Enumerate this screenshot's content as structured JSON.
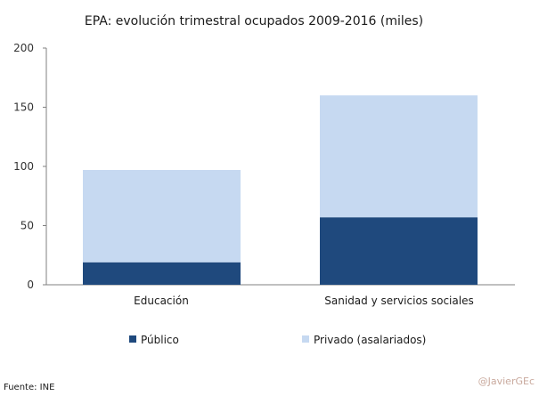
{
  "chart_data": {
    "type": "bar",
    "stacked": true,
    "title": "EPA: evolución trimestral ocupados 2009-2016 (miles)",
    "categories": [
      "Educación",
      "Sanidad y servicios sociales"
    ],
    "series": [
      {
        "name": "Público",
        "values": [
          19,
          57
        ],
        "color": "#1f497d"
      },
      {
        "name": "Privado (asalariados)",
        "values": [
          78,
          103
        ],
        "color": "#c6d9f1"
      }
    ],
    "ylim": [
      0,
      200
    ],
    "yticks": [
      "0",
      "50",
      "100",
      "150",
      "200"
    ],
    "ytick_values": [
      0,
      50,
      100,
      150,
      200
    ],
    "xlabel": "",
    "ylabel": "",
    "grid": false,
    "legend": "bottom"
  },
  "footer": {
    "source": "Fuente: INE",
    "watermark": "@JavierGEc"
  },
  "colors": {
    "axis": "#808080"
  }
}
